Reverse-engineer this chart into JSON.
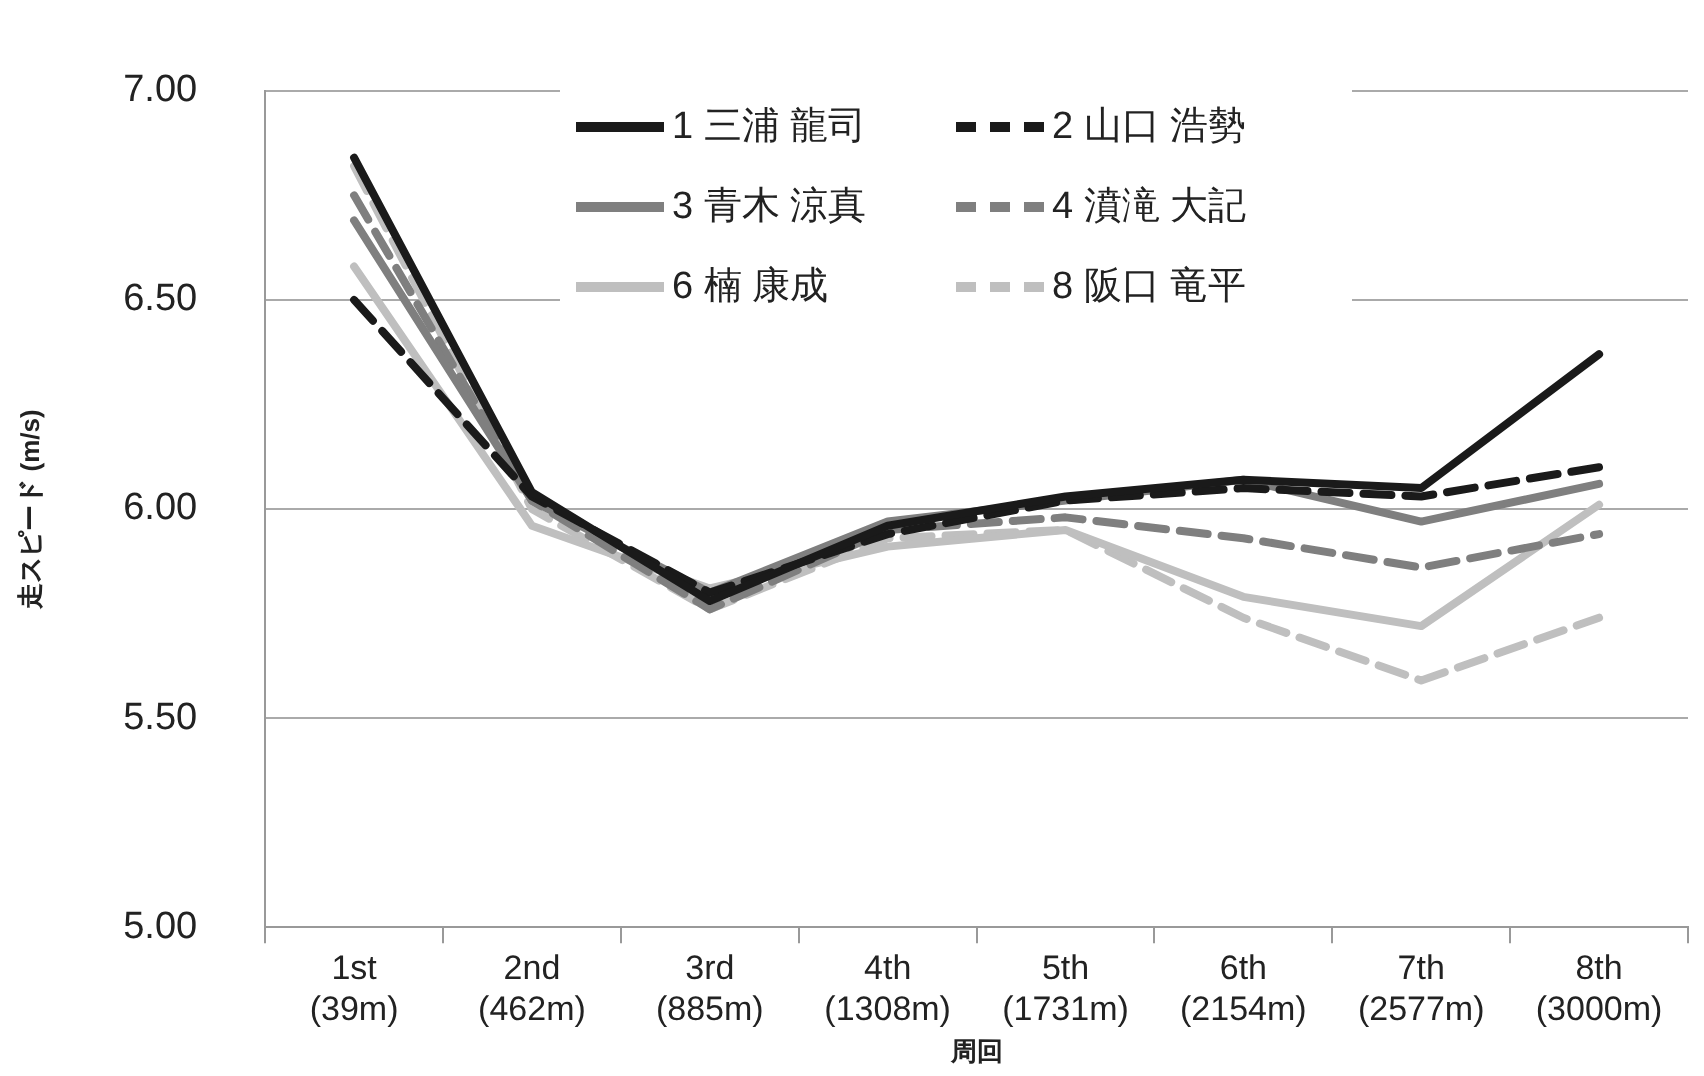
{
  "chart_data": {
    "type": "line",
    "xlabel": "周回",
    "ylabel": "走スピード (m/s)",
    "categories": [
      "1st (39m)",
      "2nd (462m)",
      "3rd (885m)",
      "4th (1308m)",
      "5th (1731m)",
      "6th (2154m)",
      "7th (2577m)",
      "8th (3000m)"
    ],
    "series": [
      {
        "name": "1 三浦 龍司",
        "color": "#1a1a1a",
        "line_style": "solid",
        "values": [
          6.84,
          6.04,
          5.78,
          5.96,
          6.03,
          6.07,
          6.05,
          6.37
        ]
      },
      {
        "name": "2 山口 浩勢",
        "color": "#1a1a1a",
        "line_style": "dashed",
        "values": [
          6.5,
          6.03,
          5.8,
          5.94,
          6.02,
          6.05,
          6.03,
          6.1
        ]
      },
      {
        "name": "3 青木 涼真",
        "color": "#7f7f7f",
        "line_style": "solid",
        "values": [
          6.69,
          6.02,
          5.8,
          5.97,
          6.02,
          6.07,
          5.97,
          6.06
        ]
      },
      {
        "name": "4 濆滝 大記",
        "color": "#7f7f7f",
        "line_style": "dashed",
        "values": [
          6.75,
          6.02,
          5.76,
          5.95,
          5.98,
          5.93,
          5.86,
          5.94
        ]
      },
      {
        "name": "6 楠 康成",
        "color": "#bfbfbf",
        "line_style": "solid",
        "values": [
          6.58,
          5.96,
          5.81,
          5.91,
          5.95,
          5.79,
          5.72,
          6.01
        ]
      },
      {
        "name": "8 阪口 竜平",
        "color": "#bfbfbf",
        "line_style": "dashed",
        "values": [
          6.82,
          6.0,
          5.76,
          5.93,
          5.95,
          5.74,
          5.59,
          5.74
        ]
      }
    ],
    "ylim": [
      5,
      7
    ],
    "yticks": [
      {
        "value": 5,
        "label": "5.00"
      },
      {
        "value": 5.5,
        "label": "5.50"
      },
      {
        "value": 6,
        "label": "6.00"
      },
      {
        "value": 6.5,
        "label": "6.50"
      },
      {
        "value": 7,
        "label": "7.00"
      }
    ],
    "grid": "y",
    "legend": "top",
    "marker": "none"
  }
}
